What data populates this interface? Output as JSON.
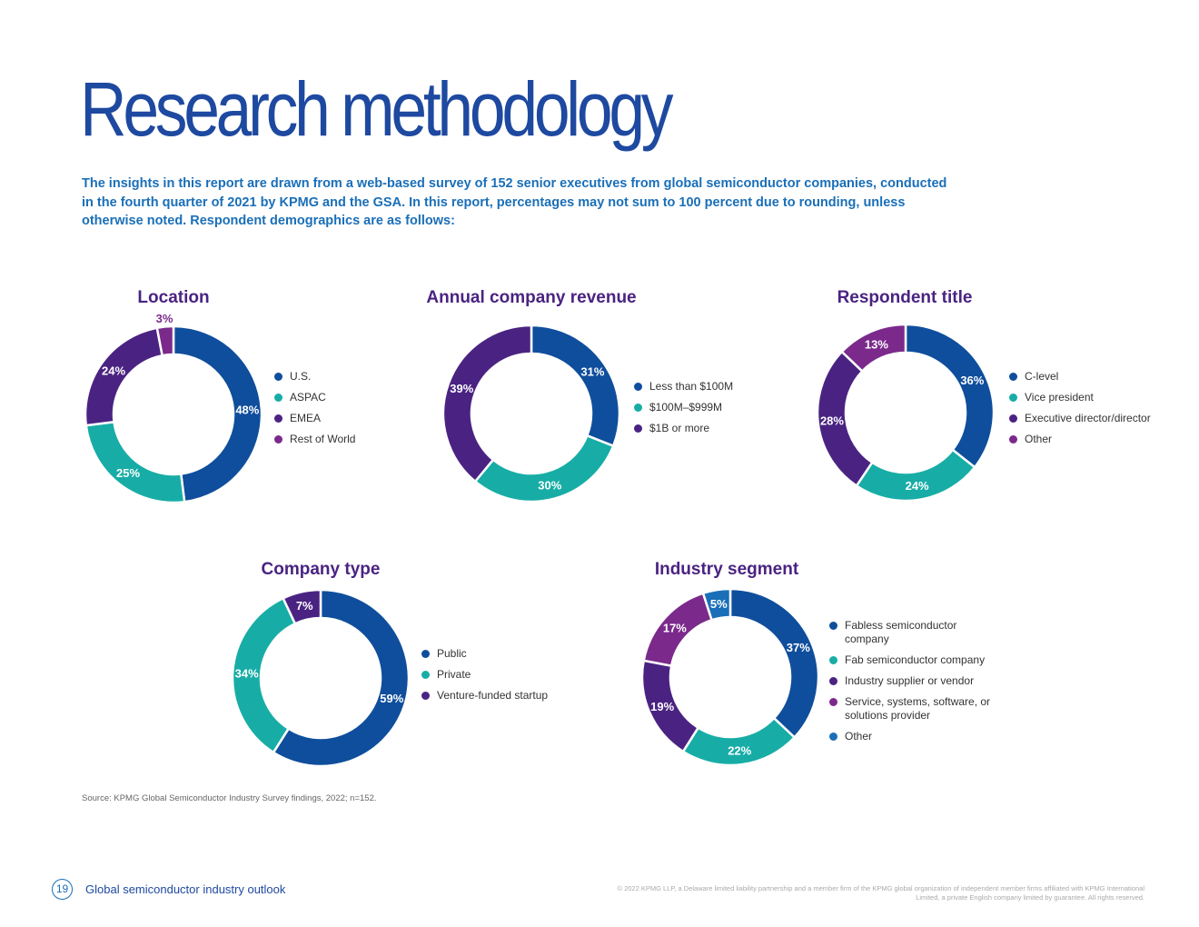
{
  "page": {
    "title": "Research methodology",
    "intro": "The insights in this report are drawn from a web-based survey of 152 senior executives from global semiconductor companies, conducted in the fourth quarter of 2021 by KPMG and the GSA. In this report, percentages may not sum to 100 percent due to rounding, unless otherwise noted. Respondent demographics are as follows:",
    "source": "Source: KPMG Global Semiconductor Industry Survey findings, 2022; n=152.",
    "page_number": "19",
    "footer_title": "Global semiconductor industry outlook",
    "copyright": "© 2022 KPMG LLP, a Delaware limited liability partnership and a member firm of the KPMG global organization of independent member firms affiliated with KPMG International Limited, a private English company limited by guarantee. All rights reserved."
  },
  "colors": {
    "navy": "#0f4e9c",
    "teal": "#17ada6",
    "indigo": "#4a2382",
    "purple": "#7b2a8c",
    "blue": "#1a6fb8",
    "title": "#1e49a0"
  },
  "chart_data": [
    {
      "type": "pie",
      "title": "Location",
      "slices": [
        {
          "label": "U.S.",
          "value": 48,
          "display": "48%",
          "color": "#0f4e9c"
        },
        {
          "label": "ASPAC",
          "value": 25,
          "display": "25%",
          "color": "#17ada6"
        },
        {
          "label": "EMEA",
          "value": 24,
          "display": "24%",
          "color": "#4a2382"
        },
        {
          "label": "Rest of World",
          "value": 3,
          "display": "3%",
          "color": "#7b2a8c"
        }
      ]
    },
    {
      "type": "pie",
      "title": "Annual company revenue",
      "slices": [
        {
          "label": "Less than $100M",
          "value": 31,
          "display": "31%",
          "color": "#0f4e9c"
        },
        {
          "label": "$100M–$999M",
          "value": 30,
          "display": "30%",
          "color": "#17ada6"
        },
        {
          "label": "$1B or more",
          "value": 39,
          "display": "39%",
          "color": "#4a2382"
        }
      ]
    },
    {
      "type": "pie",
      "title": "Respondent title",
      "slices": [
        {
          "label": "C-level",
          "value": 36,
          "display": "36%",
          "color": "#0f4e9c"
        },
        {
          "label": "Vice president",
          "value": 24,
          "display": "24%",
          "color": "#17ada6"
        },
        {
          "label": "Executive director/director",
          "value": 28,
          "display": "28%",
          "color": "#4a2382"
        },
        {
          "label": "Other",
          "value": 13,
          "display": "13%",
          "color": "#7b2a8c"
        }
      ]
    },
    {
      "type": "pie",
      "title": "Company type",
      "slices": [
        {
          "label": "Public",
          "value": 59,
          "display": "59%",
          "color": "#0f4e9c"
        },
        {
          "label": "Private",
          "value": 34,
          "display": "34%",
          "color": "#17ada6"
        },
        {
          "label": "Venture-funded startup",
          "value": 7,
          "display": "7%",
          "color": "#4a2382"
        }
      ]
    },
    {
      "type": "pie",
      "title": "Industry segment",
      "slices": [
        {
          "label": "Fabless semiconductor company",
          "value": 37,
          "display": "37%",
          "color": "#0f4e9c"
        },
        {
          "label": "Fab semiconductor company",
          "value": 22,
          "display": "22%",
          "color": "#17ada6"
        },
        {
          "label": "Industry supplier or vendor",
          "value": 19,
          "display": "19%",
          "color": "#4a2382"
        },
        {
          "label": "Service, systems, software, or solutions provider",
          "value": 17,
          "display": "17%",
          "color": "#7b2a8c"
        },
        {
          "label": "Other",
          "value": 5,
          "display": "5%",
          "color": "#1a6fb8"
        }
      ]
    }
  ]
}
